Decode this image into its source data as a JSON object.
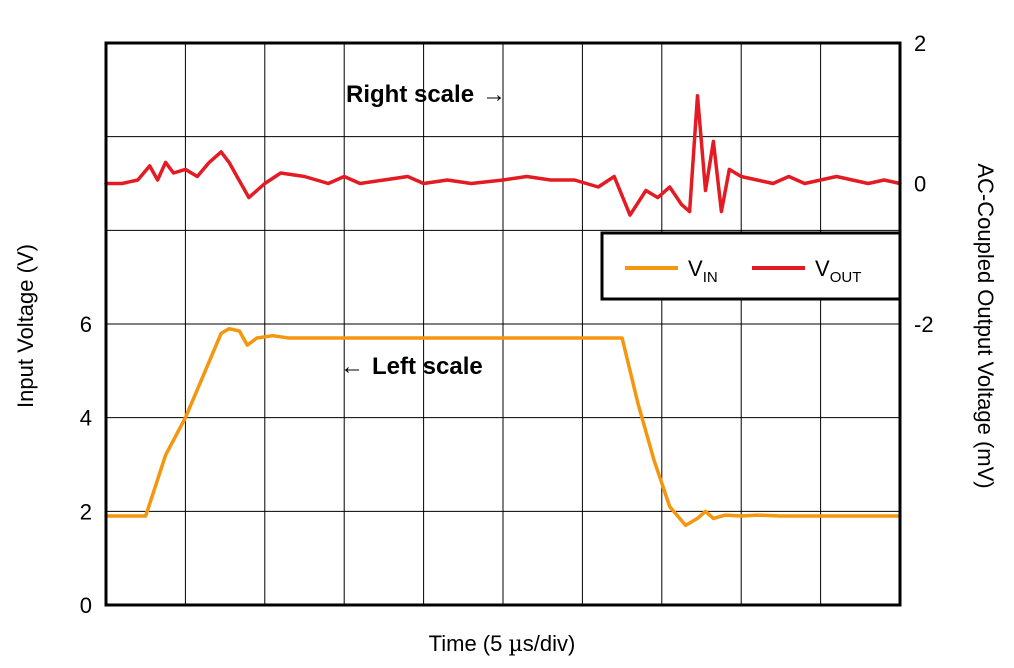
{
  "chart_data": {
    "type": "line",
    "xlabel_main": "Time (5 ",
    "xlabel_mu": "µ",
    "xlabel_rest": "s/div)",
    "ylabel_left": "Input Voltage (V)",
    "ylabel_right": "AC-Coupled Output Voltage (mV)",
    "x_divisions": 10,
    "y_divisions": 6,
    "left_ticks": [
      "0",
      "2",
      "4",
      "6"
    ],
    "right_ticks": [
      "2",
      "0",
      "-2"
    ],
    "left_ylim": [
      0,
      12
    ],
    "right_ylim": [
      -6,
      2
    ],
    "annotations": {
      "right_scale": "Right scale",
      "right_arrow": "→",
      "left_scale": "Left scale",
      "left_arrow": "←"
    },
    "legend": {
      "vin_main": "V",
      "vin_sub": "IN",
      "vout_main": "V",
      "vout_sub": "OUT"
    },
    "colors": {
      "vin": "#f5960f",
      "vout": "#e31b23",
      "grid": "#000000"
    },
    "series": [
      {
        "key": "vin",
        "axis": "left",
        "x": [
          0,
          0.5,
          0.75,
          1.0,
          1.25,
          1.45,
          1.55,
          1.68,
          1.78,
          1.9,
          2.1,
          2.3,
          2.6,
          3,
          4,
          5,
          6,
          6.5,
          6.7,
          6.9,
          7.1,
          7.3,
          7.45,
          7.55,
          7.65,
          7.8,
          8.0,
          8.2,
          8.5,
          9,
          9.5,
          10
        ],
        "y": [
          1.9,
          1.9,
          3.2,
          4.0,
          5.0,
          5.8,
          5.9,
          5.85,
          5.55,
          5.7,
          5.75,
          5.7,
          5.7,
          5.7,
          5.7,
          5.7,
          5.7,
          5.7,
          4.3,
          3.1,
          2.1,
          1.7,
          1.85,
          2.0,
          1.85,
          1.92,
          1.9,
          1.92,
          1.9,
          1.9,
          1.9,
          1.9
        ]
      },
      {
        "key": "vout",
        "axis": "right",
        "x": [
          0,
          0.2,
          0.4,
          0.55,
          0.65,
          0.75,
          0.85,
          1.0,
          1.15,
          1.3,
          1.45,
          1.55,
          1.65,
          1.8,
          2.0,
          2.2,
          2.5,
          2.8,
          3.0,
          3.2,
          3.5,
          3.8,
          4.0,
          4.3,
          4.6,
          5.0,
          5.3,
          5.6,
          5.9,
          6.2,
          6.4,
          6.6,
          6.8,
          6.95,
          7.1,
          7.25,
          7.35,
          7.45,
          7.55,
          7.65,
          7.75,
          7.85,
          8.0,
          8.2,
          8.4,
          8.6,
          8.8,
          9.0,
          9.2,
          9.4,
          9.6,
          9.8,
          10
        ],
        "y": [
          0.0,
          0.0,
          0.05,
          0.25,
          0.05,
          0.3,
          0.15,
          0.2,
          0.1,
          0.3,
          0.45,
          0.3,
          0.1,
          -0.2,
          0.0,
          0.15,
          0.1,
          0.0,
          0.1,
          0.0,
          0.05,
          0.1,
          0.0,
          0.05,
          0.0,
          0.05,
          0.1,
          0.05,
          0.05,
          -0.05,
          0.1,
          -0.45,
          -0.1,
          -0.2,
          -0.05,
          -0.3,
          -0.4,
          1.25,
          -0.1,
          0.6,
          -0.4,
          0.2,
          0.1,
          0.05,
          0.0,
          0.1,
          0.0,
          0.05,
          0.1,
          0.05,
          0.0,
          0.05,
          0.0
        ]
      }
    ]
  }
}
